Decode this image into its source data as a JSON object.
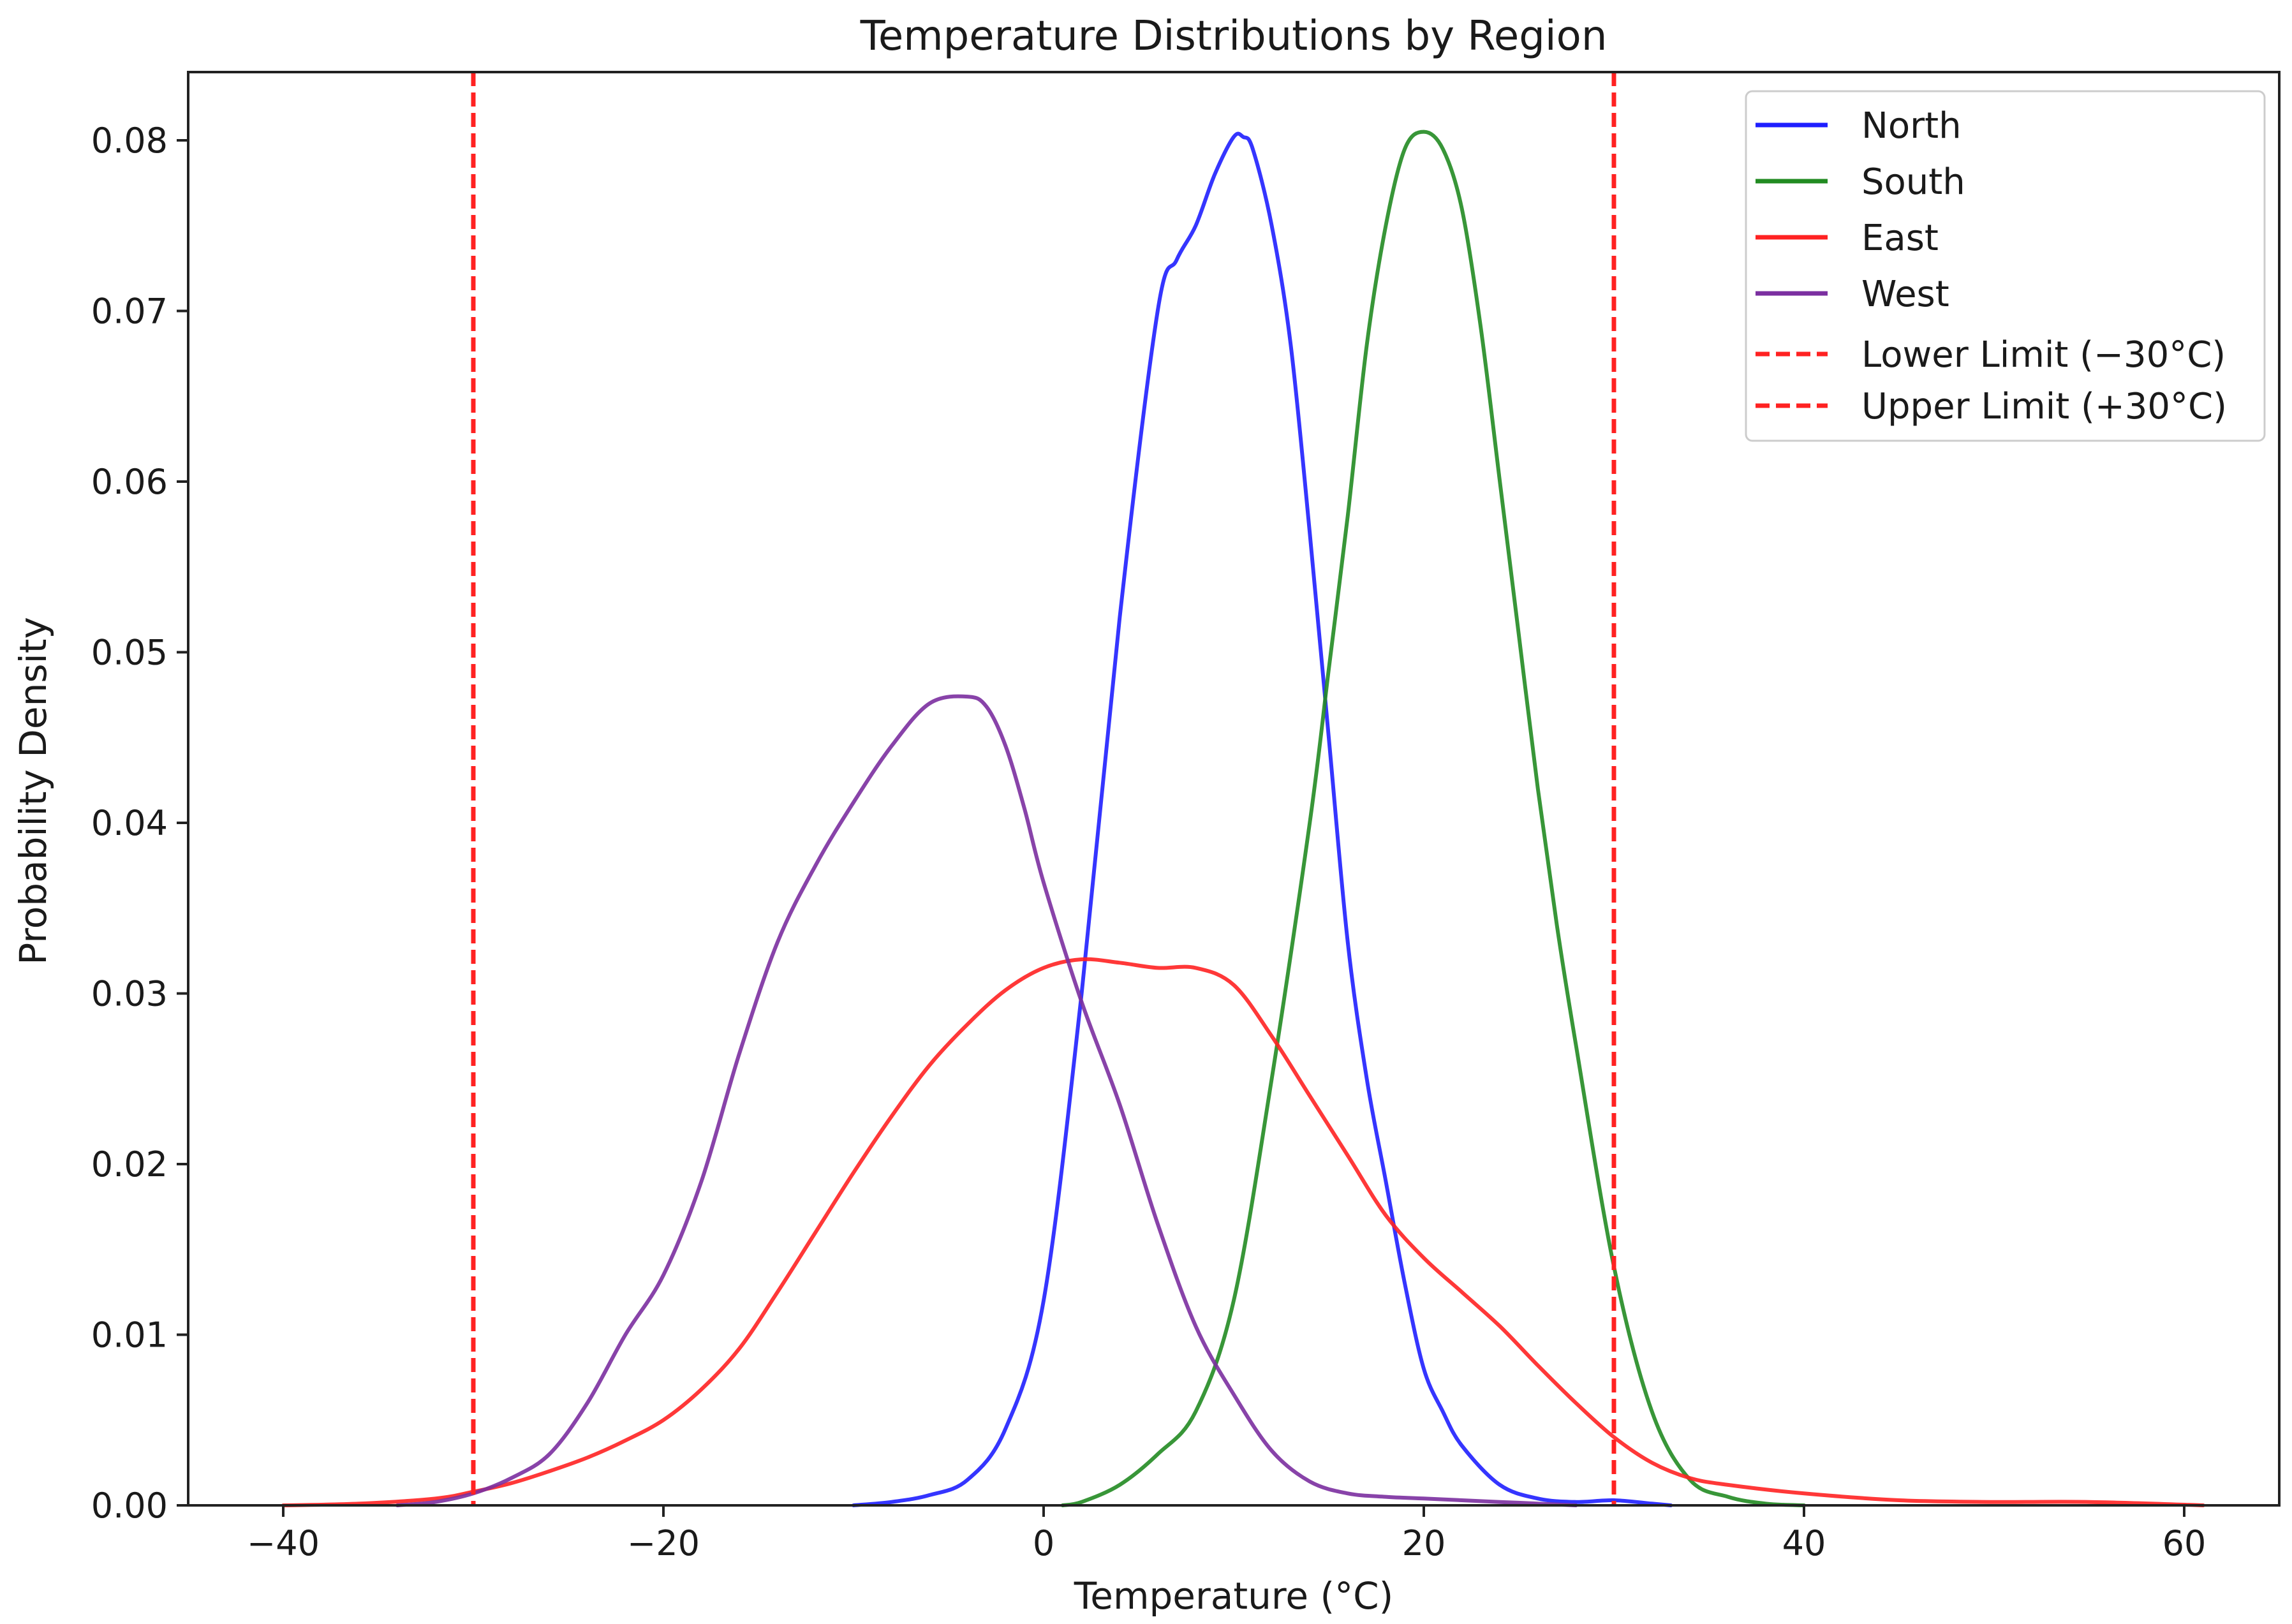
{
  "chart_data": {
    "type": "line",
    "title": "Temperature Distributions by Region",
    "xlabel": "Temperature (°C)",
    "ylabel": "Probability Density",
    "xlim": [
      -45,
      65
    ],
    "ylim": [
      0,
      0.084
    ],
    "xticks": [
      -40,
      -20,
      0,
      20,
      40,
      60
    ],
    "xtick_labels": [
      "−40",
      "−20",
      "0",
      "20",
      "40",
      "60"
    ],
    "yticks": [
      0.0,
      0.01,
      0.02,
      0.03,
      0.04,
      0.05,
      0.06,
      0.07,
      0.08
    ],
    "ytick_labels": [
      "0.00",
      "0.01",
      "0.02",
      "0.03",
      "0.04",
      "0.05",
      "0.06",
      "0.07",
      "0.08"
    ],
    "grid": false,
    "legend_position": "top-right",
    "series": [
      {
        "name": "North",
        "color": "#1f1fff",
        "x": [
          -10,
          -8,
          -6,
          -4,
          -2,
          0,
          2,
          4,
          6,
          7,
          8,
          9,
          10,
          10.5,
          11,
          12,
          13,
          14,
          15,
          16,
          17,
          18,
          19,
          20,
          21,
          22,
          24,
          26,
          28,
          30,
          32,
          33
        ],
        "y": [
          0.0,
          0.0002,
          0.0006,
          0.0015,
          0.0045,
          0.012,
          0.03,
          0.052,
          0.07,
          0.073,
          0.075,
          0.078,
          0.0802,
          0.0802,
          0.0795,
          0.075,
          0.068,
          0.057,
          0.045,
          0.033,
          0.025,
          0.019,
          0.013,
          0.008,
          0.0055,
          0.0035,
          0.0012,
          0.0004,
          0.0002,
          0.0003,
          0.0001,
          0.0
        ]
      },
      {
        "name": "South",
        "color": "#228b22",
        "x": [
          1,
          2,
          4,
          6,
          8,
          10,
          12,
          14,
          15,
          16,
          17,
          18,
          19,
          20,
          21,
          22,
          23,
          24,
          25,
          26,
          27,
          28,
          30,
          32,
          34,
          36,
          38,
          40
        ],
        "y": [
          0.0,
          0.0002,
          0.0012,
          0.003,
          0.0055,
          0.012,
          0.025,
          0.04,
          0.049,
          0.058,
          0.068,
          0.075,
          0.0795,
          0.0805,
          0.0795,
          0.076,
          0.069,
          0.06,
          0.051,
          0.042,
          0.034,
          0.027,
          0.014,
          0.0055,
          0.0015,
          0.0005,
          0.0001,
          0.0
        ]
      },
      {
        "name": "East",
        "color": "#ff2222",
        "x": [
          -40,
          -36,
          -32,
          -30,
          -28,
          -26,
          -24,
          -22,
          -20,
          -18,
          -16,
          -14,
          -12,
          -10,
          -8,
          -6,
          -4,
          -2,
          0,
          2,
          4,
          6,
          8,
          10,
          12,
          14,
          16,
          18,
          20,
          22,
          24,
          26,
          28,
          30,
          32,
          34,
          36,
          40,
          45,
          50,
          55,
          61
        ],
        "y": [
          0.0,
          0.0001,
          0.0004,
          0.0008,
          0.0013,
          0.002,
          0.0028,
          0.0038,
          0.005,
          0.0068,
          0.0092,
          0.0125,
          0.016,
          0.0195,
          0.0228,
          0.0258,
          0.0282,
          0.0302,
          0.0315,
          0.032,
          0.0318,
          0.0315,
          0.0315,
          0.0305,
          0.0275,
          0.024,
          0.0205,
          0.017,
          0.0145,
          0.0125,
          0.0105,
          0.0082,
          0.006,
          0.004,
          0.0025,
          0.0016,
          0.0012,
          0.0007,
          0.0003,
          0.0002,
          0.0002,
          0.0
        ]
      },
      {
        "name": "West",
        "color": "#7b2fa0",
        "x": [
          -34,
          -32,
          -30,
          -28,
          -26,
          -24,
          -22,
          -20,
          -18,
          -16,
          -14,
          -12,
          -10,
          -8,
          -6,
          -4,
          -3,
          -2,
          -1,
          0,
          2,
          4,
          6,
          8,
          10,
          12,
          14,
          16,
          18,
          20,
          22,
          24,
          26,
          28
        ],
        "y": [
          0.0,
          0.0002,
          0.0007,
          0.0016,
          0.003,
          0.006,
          0.01,
          0.0135,
          0.019,
          0.0265,
          0.033,
          0.0375,
          0.0412,
          0.0445,
          0.047,
          0.0474,
          0.0468,
          0.0445,
          0.0408,
          0.0365,
          0.0295,
          0.0235,
          0.0165,
          0.0105,
          0.0065,
          0.0032,
          0.0014,
          0.0007,
          0.0005,
          0.0004,
          0.0003,
          0.0002,
          0.0001,
          0.0
        ]
      }
    ],
    "reference_lines": [
      {
        "name": "Lower Limit (−30°C)",
        "x": -30,
        "color": "#ff2222",
        "style": "dashed"
      },
      {
        "name": "Upper Limit (+30°C)",
        "x": 30,
        "color": "#ff2222",
        "style": "dashed"
      }
    ]
  }
}
